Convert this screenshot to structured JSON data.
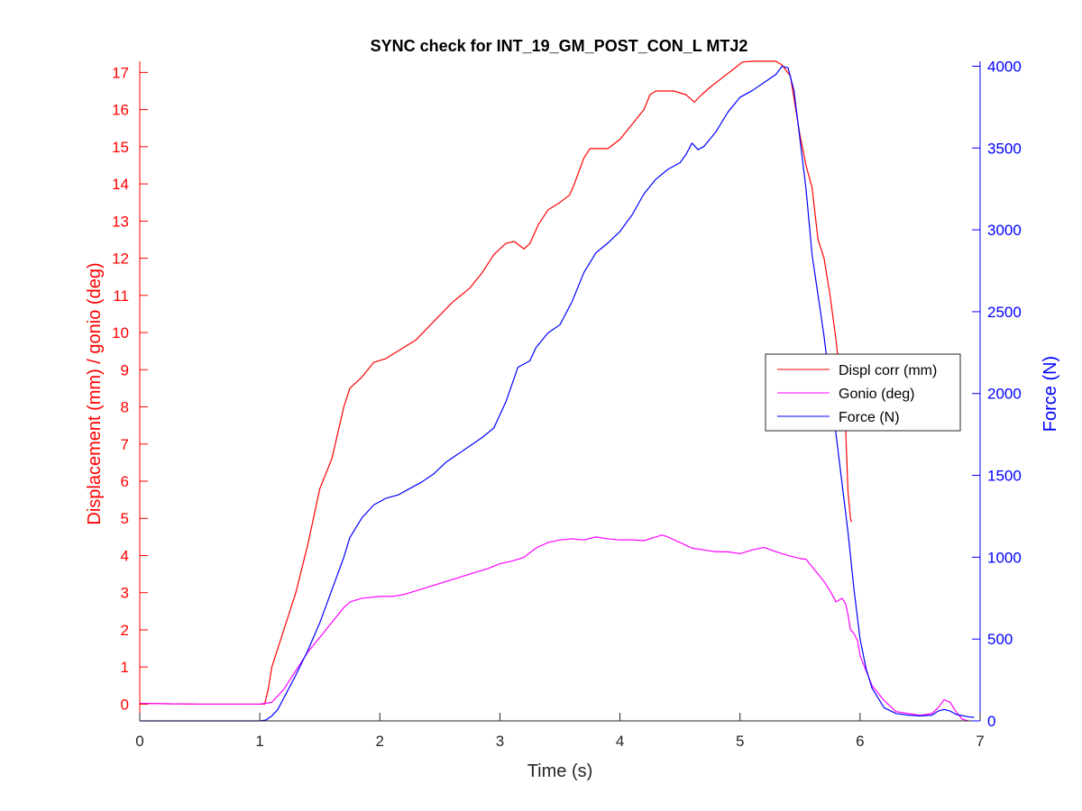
{
  "colors": {
    "left_axis": "#ff0000",
    "right_axis": "#0000ff",
    "x_axis": "#262626",
    "displ": "#ff0000",
    "gonio": "#ff00ff",
    "force": "#0000ff"
  },
  "chart_data": {
    "type": "line",
    "title": "SYNC check for INT_19_GM_POST_CON_L MTJ2",
    "xlabel": "Time (s)",
    "ylabel_left": "Displacement (mm) / gonio (deg)",
    "ylabel_right": "Force (N)",
    "xlim": [
      0,
      7
    ],
    "ylim_left": [
      -0.45,
      17.3
    ],
    "ylim_right": [
      0,
      4030
    ],
    "x_ticks": [
      "0",
      "1",
      "2",
      "3",
      "4",
      "5",
      "6",
      "7"
    ],
    "y_left_ticks": [
      "0",
      "1",
      "2",
      "3",
      "4",
      "5",
      "6",
      "7",
      "8",
      "9",
      "10",
      "11",
      "12",
      "13",
      "14",
      "15",
      "16",
      "17"
    ],
    "y_right_ticks": [
      "0",
      "500",
      "1000",
      "1500",
      "2000",
      "2500",
      "3000",
      "3500",
      "4000"
    ],
    "grid": false,
    "legend_position": "right-middle",
    "series": [
      {
        "name": "Displ corr (mm)",
        "axis": "left",
        "color": "#ff0000",
        "points": [
          [
            0,
            0.02
          ],
          [
            0.5,
            0.0
          ],
          [
            1.0,
            0.0
          ],
          [
            1.04,
            0.0
          ],
          [
            1.07,
            0.4
          ],
          [
            1.1,
            1.0
          ],
          [
            1.2,
            2.0
          ],
          [
            1.3,
            3.0
          ],
          [
            1.4,
            4.3
          ],
          [
            1.5,
            5.8
          ],
          [
            1.6,
            6.6
          ],
          [
            1.7,
            8.0
          ],
          [
            1.75,
            8.5
          ],
          [
            1.85,
            8.8
          ],
          [
            1.95,
            9.2
          ],
          [
            2.05,
            9.3
          ],
          [
            2.15,
            9.5
          ],
          [
            2.3,
            9.8
          ],
          [
            2.45,
            10.3
          ],
          [
            2.6,
            10.8
          ],
          [
            2.75,
            11.2
          ],
          [
            2.85,
            11.6
          ],
          [
            2.95,
            12.1
          ],
          [
            3.05,
            12.4
          ],
          [
            3.12,
            12.45
          ],
          [
            3.2,
            12.25
          ],
          [
            3.25,
            12.4
          ],
          [
            3.32,
            12.9
          ],
          [
            3.4,
            13.3
          ],
          [
            3.5,
            13.5
          ],
          [
            3.58,
            13.7
          ],
          [
            3.62,
            14.0
          ],
          [
            3.7,
            14.7
          ],
          [
            3.75,
            14.95
          ],
          [
            3.85,
            14.95
          ],
          [
            3.9,
            14.95
          ],
          [
            4.0,
            15.2
          ],
          [
            4.1,
            15.6
          ],
          [
            4.2,
            16.0
          ],
          [
            4.25,
            16.4
          ],
          [
            4.3,
            16.5
          ],
          [
            4.45,
            16.5
          ],
          [
            4.55,
            16.4
          ],
          [
            4.62,
            16.2
          ],
          [
            4.68,
            16.4
          ],
          [
            4.75,
            16.6
          ],
          [
            4.85,
            16.85
          ],
          [
            4.95,
            17.1
          ],
          [
            5.02,
            17.28
          ],
          [
            5.1,
            17.3
          ],
          [
            5.3,
            17.3
          ],
          [
            5.35,
            17.2
          ],
          [
            5.42,
            16.9
          ],
          [
            5.5,
            15.3
          ],
          [
            5.55,
            14.5
          ],
          [
            5.6,
            13.9
          ],
          [
            5.65,
            12.5
          ],
          [
            5.7,
            12.0
          ],
          [
            5.75,
            11.0
          ],
          [
            5.8,
            9.8
          ],
          [
            5.85,
            8.3
          ],
          [
            5.88,
            7.4
          ],
          [
            5.9,
            5.7
          ],
          [
            5.92,
            5.0
          ],
          [
            5.93,
            4.9
          ]
        ]
      },
      {
        "name": "Gonio (deg)",
        "axis": "left",
        "color": "#ff00ff",
        "points": [
          [
            0,
            0.02
          ],
          [
            0.5,
            0.0
          ],
          [
            1.0,
            0.0
          ],
          [
            1.1,
            0.05
          ],
          [
            1.2,
            0.4
          ],
          [
            1.3,
            0.9
          ],
          [
            1.4,
            1.4
          ],
          [
            1.5,
            1.8
          ],
          [
            1.6,
            2.2
          ],
          [
            1.7,
            2.6
          ],
          [
            1.75,
            2.75
          ],
          [
            1.85,
            2.85
          ],
          [
            2.0,
            2.9
          ],
          [
            2.1,
            2.9
          ],
          [
            2.2,
            2.95
          ],
          [
            2.4,
            3.15
          ],
          [
            2.6,
            3.35
          ],
          [
            2.8,
            3.55
          ],
          [
            2.9,
            3.65
          ],
          [
            3.0,
            3.78
          ],
          [
            3.1,
            3.85
          ],
          [
            3.2,
            3.95
          ],
          [
            3.3,
            4.2
          ],
          [
            3.4,
            4.35
          ],
          [
            3.5,
            4.42
          ],
          [
            3.6,
            4.45
          ],
          [
            3.7,
            4.42
          ],
          [
            3.8,
            4.5
          ],
          [
            3.9,
            4.45
          ],
          [
            4.0,
            4.42
          ],
          [
            4.1,
            4.42
          ],
          [
            4.2,
            4.4
          ],
          [
            4.3,
            4.5
          ],
          [
            4.35,
            4.55
          ],
          [
            4.4,
            4.5
          ],
          [
            4.5,
            4.35
          ],
          [
            4.6,
            4.2
          ],
          [
            4.7,
            4.15
          ],
          [
            4.8,
            4.1
          ],
          [
            4.9,
            4.1
          ],
          [
            5.0,
            4.05
          ],
          [
            5.1,
            4.15
          ],
          [
            5.2,
            4.22
          ],
          [
            5.3,
            4.1
          ],
          [
            5.4,
            4.0
          ],
          [
            5.5,
            3.92
          ],
          [
            5.55,
            3.9
          ],
          [
            5.6,
            3.7
          ],
          [
            5.65,
            3.5
          ],
          [
            5.7,
            3.3
          ],
          [
            5.75,
            3.05
          ],
          [
            5.8,
            2.75
          ],
          [
            5.85,
            2.85
          ],
          [
            5.88,
            2.7
          ],
          [
            5.9,
            2.4
          ],
          [
            5.92,
            2.0
          ],
          [
            5.95,
            1.9
          ],
          [
            5.98,
            1.7
          ],
          [
            6.0,
            1.3
          ],
          [
            6.05,
            0.9
          ],
          [
            6.1,
            0.5
          ],
          [
            6.2,
            0.1
          ],
          [
            6.3,
            -0.2
          ],
          [
            6.5,
            -0.3
          ],
          [
            6.6,
            -0.25
          ],
          [
            6.65,
            -0.1
          ],
          [
            6.7,
            0.12
          ],
          [
            6.75,
            0.05
          ],
          [
            6.8,
            -0.2
          ],
          [
            6.85,
            -0.4
          ],
          [
            6.9,
            -0.45
          ]
        ]
      },
      {
        "name": "Force (N)",
        "axis": "right",
        "color": "#0000ff",
        "points": [
          [
            0,
            0
          ],
          [
            0.5,
            0
          ],
          [
            1.0,
            0
          ],
          [
            1.05,
            5
          ],
          [
            1.1,
            30
          ],
          [
            1.15,
            70
          ],
          [
            1.3,
            280
          ],
          [
            1.4,
            430
          ],
          [
            1.5,
            600
          ],
          [
            1.6,
            800
          ],
          [
            1.7,
            1000
          ],
          [
            1.75,
            1120
          ],
          [
            1.85,
            1240
          ],
          [
            1.95,
            1320
          ],
          [
            2.05,
            1360
          ],
          [
            2.15,
            1380
          ],
          [
            2.25,
            1420
          ],
          [
            2.35,
            1460
          ],
          [
            2.45,
            1510
          ],
          [
            2.55,
            1580
          ],
          [
            2.65,
            1630
          ],
          [
            2.75,
            1680
          ],
          [
            2.85,
            1730
          ],
          [
            2.95,
            1790
          ],
          [
            3.05,
            1950
          ],
          [
            3.15,
            2160
          ],
          [
            3.25,
            2200
          ],
          [
            3.3,
            2280
          ],
          [
            3.4,
            2370
          ],
          [
            3.5,
            2420
          ],
          [
            3.6,
            2560
          ],
          [
            3.7,
            2740
          ],
          [
            3.8,
            2860
          ],
          [
            3.9,
            2920
          ],
          [
            4.0,
            2990
          ],
          [
            4.1,
            3090
          ],
          [
            4.2,
            3220
          ],
          [
            4.3,
            3310
          ],
          [
            4.4,
            3370
          ],
          [
            4.5,
            3410
          ],
          [
            4.55,
            3460
          ],
          [
            4.6,
            3530
          ],
          [
            4.65,
            3490
          ],
          [
            4.7,
            3510
          ],
          [
            4.8,
            3600
          ],
          [
            4.9,
            3720
          ],
          [
            5.0,
            3810
          ],
          [
            5.1,
            3850
          ],
          [
            5.2,
            3900
          ],
          [
            5.3,
            3950
          ],
          [
            5.35,
            4000
          ],
          [
            5.4,
            3990
          ],
          [
            5.45,
            3850
          ],
          [
            5.5,
            3550
          ],
          [
            5.55,
            3250
          ],
          [
            5.6,
            2850
          ],
          [
            5.65,
            2600
          ],
          [
            5.7,
            2350
          ],
          [
            5.75,
            2050
          ],
          [
            5.8,
            1750
          ],
          [
            5.85,
            1450
          ],
          [
            5.9,
            1150
          ],
          [
            5.95,
            800
          ],
          [
            6.0,
            500
          ],
          [
            6.05,
            320
          ],
          [
            6.1,
            200
          ],
          [
            6.2,
            80
          ],
          [
            6.3,
            45
          ],
          [
            6.4,
            35
          ],
          [
            6.5,
            30
          ],
          [
            6.6,
            35
          ],
          [
            6.65,
            60
          ],
          [
            6.7,
            70
          ],
          [
            6.75,
            60
          ],
          [
            6.8,
            40
          ],
          [
            6.9,
            25
          ],
          [
            6.95,
            22
          ]
        ]
      }
    ]
  }
}
